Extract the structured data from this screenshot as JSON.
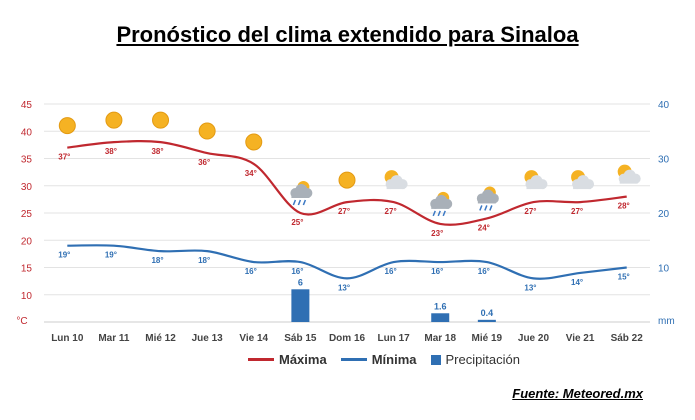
{
  "title": "Pronóstico del clima extendido para Sinaloa",
  "source": "Fuente: Meteored.mx",
  "colors": {
    "max": "#c0282f",
    "min": "#2f6fb3",
    "precip": "#2f6fb3",
    "grid": "#e3e3e3",
    "leftAxis": "#c0282f",
    "rightAxis": "#2f6fb3"
  },
  "legend": {
    "max": "Máxima",
    "min": "Mínima",
    "precip": "Precipitación"
  },
  "chart_data": {
    "type": "line",
    "categories": [
      "Lun 10",
      "Mar 11",
      "Mié 12",
      "Jue 13",
      "Vie 14",
      "Sáb 15",
      "Dom 16",
      "Lun 17",
      "Mar 18",
      "Mié 19",
      "Jue 20",
      "Vie 21",
      "Sáb 22"
    ],
    "left_axis": {
      "unit": "°C",
      "ticks": [
        10,
        15,
        20,
        25,
        30,
        35,
        40,
        45
      ],
      "ylim": [
        5,
        45
      ]
    },
    "right_axis": {
      "unit": "mm",
      "ticks": [
        10,
        20,
        30,
        40
      ],
      "ylim": [
        0,
        40
      ]
    },
    "series": [
      {
        "name": "Máxima",
        "axis": "left",
        "values": [
          37,
          38,
          38,
          36,
          34,
          25,
          27,
          27,
          23,
          24,
          27,
          27,
          28
        ],
        "labels": [
          "37°",
          "38°",
          "38°",
          "36°",
          "34°",
          "25°",
          "27°",
          "27°",
          "23°",
          "24°",
          "27°",
          "27°",
          "28°"
        ]
      },
      {
        "name": "Mínima",
        "axis": "left",
        "values": [
          19,
          19,
          18,
          18,
          16,
          16,
          13,
          16,
          16,
          16,
          13,
          14,
          15
        ],
        "labels": [
          "19°",
          "19°",
          "18°",
          "18°",
          "16°",
          "16°",
          "13°",
          "16°",
          "16°",
          "16°",
          "13°",
          "14°",
          "15°"
        ]
      },
      {
        "name": "Precipitación",
        "axis": "right",
        "type": "bar",
        "values": [
          0,
          0,
          0,
          0,
          0,
          6,
          0,
          0,
          1.6,
          0.4,
          0,
          0,
          0
        ],
        "labels": [
          "",
          "",
          "",
          "",
          "",
          "6",
          "",
          "",
          "1.6",
          "0.4",
          "",
          "",
          ""
        ]
      }
    ],
    "weather_icons": [
      "sun-icon",
      "sun-icon",
      "sun-icon",
      "sun-icon",
      "sun-icon",
      "rain-cloud-icon",
      "sun-icon",
      "partly-cloudy-icon",
      "rain-cloud-icon",
      "rain-cloud-icon",
      "partly-cloudy-icon",
      "partly-cloudy-icon",
      "partly-cloudy-icon"
    ],
    "grid": true,
    "legend_position": "bottom-center"
  }
}
